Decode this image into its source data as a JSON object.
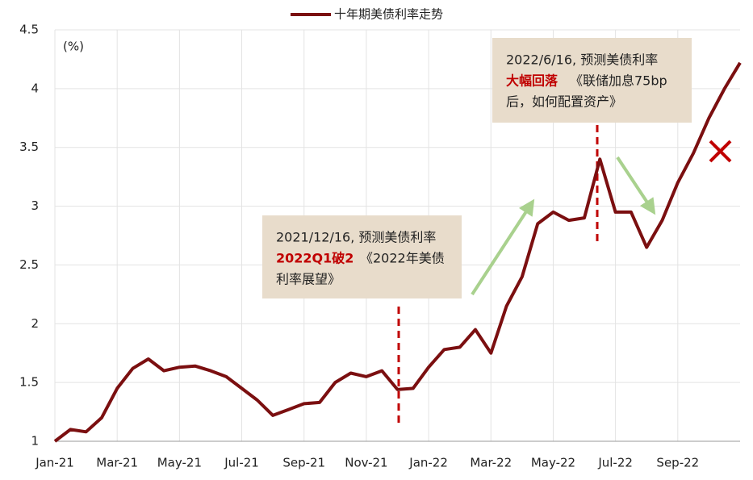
{
  "chart_data": {
    "type": "line",
    "unit_label": "(%)",
    "series": [
      {
        "name": "十年期美债利率走势",
        "color": "#7b0f10",
        "values": [
          1.0,
          1.1,
          1.08,
          1.2,
          1.45,
          1.62,
          1.7,
          1.6,
          1.63,
          1.64,
          1.6,
          1.55,
          1.45,
          1.35,
          1.22,
          1.27,
          1.32,
          1.33,
          1.5,
          1.58,
          1.55,
          1.6,
          1.44,
          1.45,
          1.63,
          1.78,
          1.8,
          1.95,
          1.75,
          2.15,
          2.4,
          2.85,
          2.95,
          2.88,
          2.9,
          3.4,
          2.95,
          2.95,
          2.65,
          2.88,
          3.2,
          3.45,
          3.75,
          4.0,
          4.22
        ]
      }
    ],
    "categories": [
      "Jan-21",
      null,
      null,
      null,
      "Mar-21",
      null,
      null,
      null,
      "May-21",
      null,
      null,
      null,
      "Jul-21",
      null,
      null,
      null,
      "Sep-21",
      null,
      null,
      null,
      "Nov-21",
      null,
      null,
      null,
      "Jan-22",
      null,
      null,
      null,
      "Mar-22",
      null,
      null,
      null,
      "May-22",
      null,
      null,
      null,
      "Jul-22",
      null,
      null,
      null,
      "Sep-22",
      null,
      null,
      null,
      null
    ],
    "ylim": [
      1,
      4.5
    ],
    "yticks": [
      1,
      1.5,
      2,
      2.5,
      3,
      3.5,
      4,
      4.5
    ],
    "grid": true,
    "annotations": [
      {
        "title": "2021/12/16, 预测美债利率",
        "highlight": "2022Q1破2",
        "rest": [
          "《2022年美债",
          "利率展望》"
        ]
      },
      {
        "title": "2022/6/16, 预测美债利率",
        "highlight": "大幅回落",
        "rest": [
          "《联储加息75bp",
          "后，如何配置资产》"
        ]
      }
    ]
  }
}
